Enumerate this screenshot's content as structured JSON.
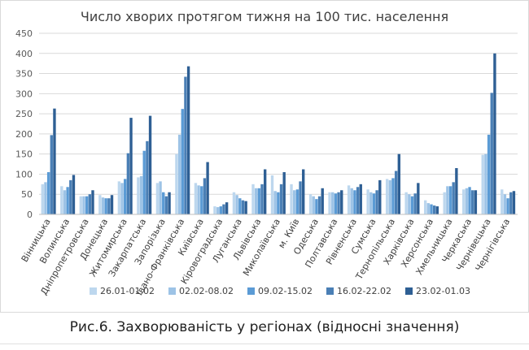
{
  "caption": "Рис.6. Захворюваність у регіонах (відносні значення)",
  "chart_data": {
    "type": "bar",
    "title": "Число хворих протягом тижня на 100 тис. населення",
    "xlabel": "",
    "ylabel": "",
    "ylim": [
      0,
      450
    ],
    "yticks": [
      0,
      50,
      100,
      150,
      200,
      250,
      300,
      350,
      400,
      450
    ],
    "grid": true,
    "legend_position": "bottom",
    "categories": [
      "Вінницька",
      "Волинська",
      "Дніпропетровська",
      "Донецька",
      "Житомирська",
      "Закарпатська",
      "Запорізька",
      "Івано-Франківська",
      "Київська",
      "Кіровоградська",
      "Луганська",
      "Львівська",
      "Миколаївська",
      "м. Київ",
      "Одеська",
      "Полтавська",
      "Рівненська",
      "Сумська",
      "Тернопільська",
      "Харківська",
      "Херсонська",
      "Хмельницька",
      "Черкаська",
      "Чернівецька",
      "Чернігівська"
    ],
    "series": [
      {
        "name": "26.01-01.02",
        "color": "#bdd7ee",
        "values": [
          75,
          70,
          45,
          48,
          82,
          92,
          78,
          150,
          78,
          20,
          55,
          75,
          97,
          75,
          50,
          55,
          72,
          62,
          88,
          55,
          35,
          55,
          62,
          148,
          62
        ]
      },
      {
        "name": "02.02-08.02",
        "color": "#9dc3e6",
        "values": [
          80,
          60,
          45,
          42,
          78,
          95,
          82,
          198,
          72,
          18,
          48,
          65,
          58,
          60,
          45,
          55,
          65,
          55,
          85,
          50,
          28,
          70,
          65,
          150,
          50
        ]
      },
      {
        "name": "09.02-15.02",
        "color": "#5b9bd5",
        "values": [
          105,
          68,
          45,
          40,
          88,
          158,
          55,
          262,
          70,
          20,
          40,
          65,
          55,
          62,
          38,
          52,
          60,
          52,
          90,
          45,
          25,
          70,
          68,
          198,
          40
        ]
      },
      {
        "name": "16.02-22.02",
        "color": "#4a7fb5",
        "values": [
          197,
          85,
          50,
          40,
          152,
          182,
          45,
          342,
          90,
          25,
          35,
          75,
          75,
          82,
          45,
          55,
          68,
          60,
          108,
          52,
          22,
          80,
          60,
          302,
          55
        ]
      },
      {
        "name": "23.02-01.03",
        "color": "#2e5f94",
        "values": [
          263,
          98,
          60,
          48,
          240,
          245,
          55,
          368,
          130,
          30,
          33,
          112,
          105,
          112,
          65,
          60,
          75,
          85,
          150,
          78,
          20,
          115,
          60,
          400,
          58
        ]
      }
    ]
  }
}
